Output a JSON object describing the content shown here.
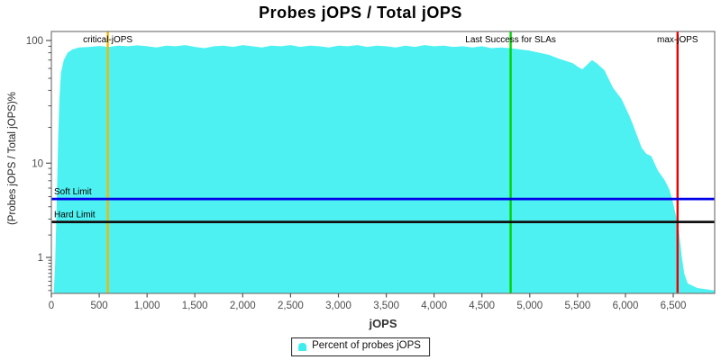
{
  "chart_data": {
    "type": "area",
    "title": "Probes jOPS / Total jOPS",
    "xlabel": "jOPS",
    "ylabel": "(Probes jOPS / Total jOPS)%",
    "x_ticks": [
      0,
      500,
      1000,
      1500,
      2000,
      2500,
      3000,
      3500,
      4000,
      4500,
      5000,
      5500,
      6000,
      6500
    ],
    "y_ticks_major": [
      100,
      10,
      1
    ],
    "y_ticks_minor": [
      90,
      80,
      70,
      60,
      50,
      40,
      30,
      20,
      9,
      8,
      7,
      6,
      5,
      4,
      3,
      2,
      0.9,
      0.8,
      0.7,
      0.6,
      0.5,
      0.4,
      0.3,
      0.2,
      0.1
    ],
    "xlim": [
      0,
      6933
    ],
    "ylim_log": [
      0.05,
      115
    ],
    "grid": false,
    "legend": {
      "label": "Percent of probes jOPS",
      "marker_color": "#3eeeee",
      "position": "bottom-center"
    },
    "series": [
      {
        "name": "Percent of probes jOPS",
        "color": "#4df1f1",
        "points": [
          [
            25,
            0.05
          ],
          [
            40,
            0.8
          ],
          [
            55,
            4
          ],
          [
            70,
            15
          ],
          [
            85,
            35
          ],
          [
            100,
            55
          ],
          [
            130,
            70
          ],
          [
            170,
            80
          ],
          [
            220,
            85
          ],
          [
            290,
            88
          ],
          [
            400,
            89
          ],
          [
            500,
            90.5
          ],
          [
            600,
            89
          ],
          [
            700,
            91
          ],
          [
            800,
            90
          ],
          [
            900,
            91.5
          ],
          [
            1000,
            90
          ],
          [
            1100,
            88
          ],
          [
            1200,
            91
          ],
          [
            1300,
            90
          ],
          [
            1400,
            92
          ],
          [
            1500,
            89
          ],
          [
            1600,
            87
          ],
          [
            1700,
            90
          ],
          [
            1800,
            91
          ],
          [
            1900,
            89
          ],
          [
            2000,
            92
          ],
          [
            2100,
            90
          ],
          [
            2200,
            88
          ],
          [
            2300,
            91
          ],
          [
            2400,
            90
          ],
          [
            2500,
            92
          ],
          [
            2600,
            89
          ],
          [
            2700,
            91
          ],
          [
            2800,
            90
          ],
          [
            2900,
            88
          ],
          [
            3000,
            91
          ],
          [
            3100,
            90
          ],
          [
            3200,
            92
          ],
          [
            3300,
            89
          ],
          [
            3400,
            91
          ],
          [
            3500,
            90
          ],
          [
            3600,
            88
          ],
          [
            3700,
            91
          ],
          [
            3800,
            89
          ],
          [
            3900,
            92
          ],
          [
            4000,
            90
          ],
          [
            4100,
            91
          ],
          [
            4200,
            89
          ],
          [
            4300,
            90
          ],
          [
            4400,
            88
          ],
          [
            4500,
            90
          ],
          [
            4600,
            87
          ],
          [
            4700,
            88
          ],
          [
            4800,
            87
          ],
          [
            4900,
            85
          ],
          [
            5000,
            83
          ],
          [
            5100,
            80
          ],
          [
            5200,
            77
          ],
          [
            5300,
            72
          ],
          [
            5350,
            70
          ],
          [
            5450,
            66
          ],
          [
            5500,
            62
          ],
          [
            5550,
            59
          ],
          [
            5650,
            70
          ],
          [
            5700,
            66
          ],
          [
            5780,
            58
          ],
          [
            5870,
            42
          ],
          [
            5960,
            34
          ],
          [
            6040,
            25
          ],
          [
            6080,
            21
          ],
          [
            6170,
            13.5
          ],
          [
            6220,
            12
          ],
          [
            6270,
            11.5
          ],
          [
            6340,
            8.6
          ],
          [
            6410,
            7.1
          ],
          [
            6460,
            5.8
          ],
          [
            6500,
            4.3
          ],
          [
            6530,
            3.2
          ],
          [
            6560,
            2.2
          ],
          [
            6590,
            1.0
          ],
          [
            6615,
            0.5
          ],
          [
            6650,
            0.25
          ],
          [
            6750,
            0.15
          ],
          [
            6900,
            0.11
          ],
          [
            6933,
            0.1
          ]
        ]
      }
    ],
    "markers": {
      "vertical": [
        {
          "name": "critical-jops",
          "label": "critical-jOPS",
          "jops": 590,
          "color": "#f5b800"
        },
        {
          "name": "last-success-slas",
          "label": "Last Success for SLAs",
          "jops": 4800,
          "color": "#00d400"
        },
        {
          "name": "max-jops",
          "label": "max-jOPS",
          "jops": 6545,
          "color": "#f20000"
        }
      ],
      "horizontal": [
        {
          "name": "soft-limit",
          "label": "Soft Limit",
          "value": 4.75,
          "color": "#0000e8"
        },
        {
          "name": "hard-limit",
          "label": "Hard Limit",
          "value": 2.8,
          "color": "#101010"
        }
      ]
    },
    "axis_colors": {
      "border": "#777777",
      "tick": "#555555",
      "tick_label": "#4d4d4d"
    }
  }
}
